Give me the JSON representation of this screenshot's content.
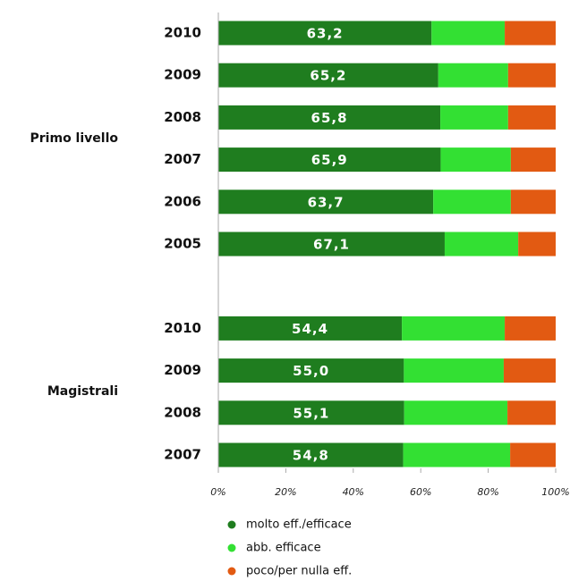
{
  "chart_data": {
    "type": "stacked_barh",
    "groups": [
      {
        "name": "Primo livello",
        "categories": [
          "2010",
          "2009",
          "2008",
          "2007",
          "2006",
          "2005"
        ]
      },
      {
        "name": "Magistrali",
        "categories": [
          "2010",
          "2009",
          "2008",
          "2007"
        ]
      }
    ],
    "series": [
      {
        "name": "molto eff./efficace",
        "color": "#1f7d1f",
        "values": [
          63.2,
          65.2,
          65.8,
          65.9,
          63.7,
          67.1,
          54.4,
          55.0,
          55.1,
          54.8
        ],
        "value_labels": [
          "63,2",
          "65,2",
          "65,8",
          "65,9",
          "63,7",
          "67,1",
          "54,4",
          "55,0",
          "55,1",
          "54,8"
        ]
      },
      {
        "name": "abb. efficace",
        "color": "#33e033",
        "values": [
          21.7,
          20.7,
          20.1,
          20.8,
          23.0,
          21.8,
          30.5,
          29.6,
          30.6,
          31.7
        ]
      },
      {
        "name": "poco/per nulla eff.",
        "color": "#e25a12",
        "values": [
          15.1,
          14.1,
          14.1,
          13.3,
          13.3,
          11.1,
          15.1,
          15.4,
          14.3,
          13.5
        ]
      }
    ],
    "xlim": [
      0,
      100
    ],
    "xticks": [
      {
        "value": 0,
        "label": "0%"
      },
      {
        "value": 20,
        "label": "20%"
      },
      {
        "value": 40,
        "label": "40%"
      },
      {
        "value": 60,
        "label": "60%"
      },
      {
        "value": 80,
        "label": "80%"
      },
      {
        "value": 100,
        "label": "100%"
      }
    ]
  }
}
